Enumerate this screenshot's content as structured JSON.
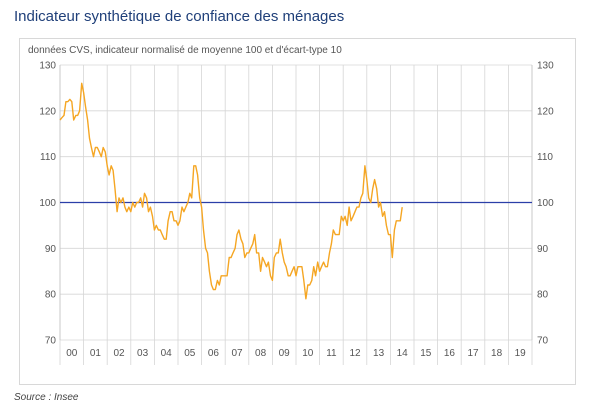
{
  "title": "Indicateur synthétique de confiance des ménages",
  "subtitle": "données CVS, indicateur normalisé de moyenne 100 et d'écart-type 10",
  "source": "Source : Insee",
  "chart_data": {
    "type": "line",
    "title": "Indicateur synthétique de confiance des ménages",
    "subtitle": "données CVS, indicateur normalisé de moyenne 100 et d'écart-type 10",
    "xlabel": "",
    "ylabel": "",
    "ylim": [
      70,
      130
    ],
    "yticks": [
      70,
      80,
      90,
      100,
      110,
      120,
      130
    ],
    "x_start_year": 2000,
    "x_categories": [
      "00",
      "01",
      "02",
      "03",
      "04",
      "05",
      "06",
      "07",
      "08",
      "09",
      "10",
      "11",
      "12",
      "13",
      "14",
      "15",
      "16",
      "17",
      "18",
      "19"
    ],
    "grid": true,
    "reference_line": {
      "value": 100,
      "color": "#2b3fa8"
    },
    "series_color": "#f5a623",
    "series": [
      {
        "name": "",
        "points": [
          [
            0.0,
            118
          ],
          [
            0.08,
            118.5
          ],
          [
            0.17,
            119
          ],
          [
            0.25,
            122
          ],
          [
            0.33,
            122
          ],
          [
            0.42,
            122.5
          ],
          [
            0.5,
            122
          ],
          [
            0.58,
            118
          ],
          [
            0.67,
            119
          ],
          [
            0.75,
            119
          ],
          [
            0.83,
            120
          ],
          [
            0.92,
            126
          ],
          [
            1.0,
            124
          ],
          [
            1.08,
            121
          ],
          [
            1.17,
            118
          ],
          [
            1.25,
            114
          ],
          [
            1.33,
            112
          ],
          [
            1.42,
            110
          ],
          [
            1.5,
            112
          ],
          [
            1.58,
            112
          ],
          [
            1.67,
            111
          ],
          [
            1.75,
            110
          ],
          [
            1.83,
            112
          ],
          [
            1.92,
            111
          ],
          [
            2.0,
            108
          ],
          [
            2.08,
            106
          ],
          [
            2.17,
            108
          ],
          [
            2.25,
            107
          ],
          [
            2.33,
            103
          ],
          [
            2.42,
            98
          ],
          [
            2.5,
            101
          ],
          [
            2.58,
            100
          ],
          [
            2.67,
            101
          ],
          [
            2.75,
            99
          ],
          [
            2.83,
            98
          ],
          [
            2.92,
            99
          ],
          [
            3.0,
            98
          ],
          [
            3.08,
            100
          ],
          [
            3.17,
            99
          ],
          [
            3.25,
            100
          ],
          [
            3.33,
            100
          ],
          [
            3.42,
            101
          ],
          [
            3.5,
            99
          ],
          [
            3.58,
            102
          ],
          [
            3.67,
            101
          ],
          [
            3.75,
            98
          ],
          [
            3.83,
            99
          ],
          [
            3.92,
            97
          ],
          [
            4.0,
            94
          ],
          [
            4.08,
            95
          ],
          [
            4.17,
            94
          ],
          [
            4.25,
            94
          ],
          [
            4.33,
            93
          ],
          [
            4.42,
            92
          ],
          [
            4.5,
            92
          ],
          [
            4.58,
            96
          ],
          [
            4.67,
            98
          ],
          [
            4.75,
            98
          ],
          [
            4.83,
            96
          ],
          [
            4.92,
            96
          ],
          [
            5.0,
            95
          ],
          [
            5.08,
            96
          ],
          [
            5.17,
            99
          ],
          [
            5.25,
            98
          ],
          [
            5.33,
            99
          ],
          [
            5.42,
            100
          ],
          [
            5.5,
            102
          ],
          [
            5.58,
            101
          ],
          [
            5.67,
            108
          ],
          [
            5.75,
            108
          ],
          [
            5.83,
            106
          ],
          [
            5.92,
            101
          ],
          [
            6.0,
            99
          ],
          [
            6.08,
            94
          ],
          [
            6.17,
            90
          ],
          [
            6.25,
            89
          ],
          [
            6.33,
            85
          ],
          [
            6.42,
            82
          ],
          [
            6.5,
            81
          ],
          [
            6.58,
            81
          ],
          [
            6.67,
            83
          ],
          [
            6.75,
            82
          ],
          [
            6.83,
            84
          ],
          [
            6.92,
            84
          ],
          [
            7.0,
            84
          ],
          [
            7.08,
            84
          ],
          [
            7.17,
            88
          ],
          [
            7.25,
            88
          ],
          [
            7.33,
            89
          ],
          [
            7.42,
            90
          ],
          [
            7.5,
            93
          ],
          [
            7.58,
            94
          ],
          [
            7.67,
            92
          ],
          [
            7.75,
            91
          ],
          [
            7.83,
            88
          ],
          [
            7.92,
            89
          ],
          [
            8.0,
            89
          ],
          [
            8.08,
            90
          ],
          [
            8.17,
            91
          ],
          [
            8.25,
            93
          ],
          [
            8.33,
            89
          ],
          [
            8.42,
            89
          ],
          [
            8.5,
            85
          ],
          [
            8.58,
            88
          ],
          [
            8.67,
            87
          ],
          [
            8.75,
            86
          ],
          [
            8.83,
            87
          ],
          [
            8.92,
            84
          ],
          [
            9.0,
            83
          ],
          [
            9.08,
            88
          ],
          [
            9.17,
            89
          ],
          [
            9.25,
            89
          ],
          [
            9.33,
            92
          ],
          [
            9.42,
            89
          ],
          [
            9.5,
            87
          ],
          [
            9.58,
            86
          ],
          [
            9.67,
            84
          ],
          [
            9.75,
            84
          ],
          [
            9.83,
            85
          ],
          [
            9.92,
            86
          ],
          [
            10.0,
            84
          ],
          [
            10.08,
            86
          ],
          [
            10.17,
            86
          ],
          [
            10.25,
            86
          ],
          [
            10.33,
            83
          ],
          [
            10.42,
            79
          ],
          [
            10.5,
            82
          ],
          [
            10.58,
            82
          ],
          [
            10.67,
            83
          ],
          [
            10.75,
            86
          ],
          [
            10.83,
            84
          ],
          [
            10.92,
            87
          ],
          [
            11.0,
            85
          ],
          [
            11.08,
            86
          ],
          [
            11.17,
            87
          ],
          [
            11.25,
            86
          ],
          [
            11.33,
            86
          ],
          [
            11.42,
            89
          ],
          [
            11.5,
            91
          ],
          [
            11.58,
            94
          ],
          [
            11.67,
            93
          ],
          [
            11.75,
            93
          ],
          [
            11.83,
            93
          ],
          [
            11.92,
            97
          ],
          [
            12.0,
            96
          ],
          [
            12.08,
            97
          ],
          [
            12.17,
            95
          ],
          [
            12.25,
            99
          ],
          [
            12.33,
            96
          ],
          [
            12.42,
            97
          ],
          [
            12.5,
            98
          ],
          [
            12.58,
            99
          ],
          [
            12.67,
            99
          ],
          [
            12.75,
            101
          ],
          [
            12.83,
            102
          ],
          [
            12.92,
            108
          ],
          [
            13.0,
            105
          ],
          [
            13.08,
            101
          ],
          [
            13.17,
            100
          ],
          [
            13.25,
            103
          ],
          [
            13.33,
            105
          ],
          [
            13.42,
            103
          ],
          [
            13.5,
            99
          ],
          [
            13.58,
            100
          ],
          [
            13.67,
            97
          ],
          [
            13.75,
            98
          ],
          [
            13.83,
            95
          ],
          [
            13.92,
            93
          ],
          [
            14.0,
            93
          ],
          [
            14.08,
            88
          ],
          [
            14.17,
            94
          ],
          [
            14.25,
            96
          ],
          [
            14.33,
            96
          ],
          [
            14.42,
            96
          ],
          [
            14.5,
            99
          ]
        ]
      }
    ]
  }
}
